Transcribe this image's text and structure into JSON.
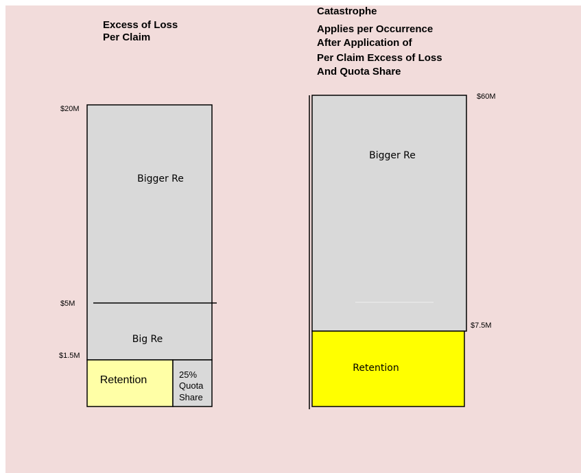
{
  "left": {
    "title": [
      "Excess of Loss",
      "Per Claim"
    ],
    "levels": [
      "$20M",
      "$5M",
      "$1.5M"
    ],
    "layers": {
      "top": "Bigger Re",
      "middle": "Big Re",
      "retention": "Retention",
      "quota_share": [
        "25%",
        "Quota",
        "Share"
      ]
    }
  },
  "right": {
    "title": [
      "Catastrophe",
      "Applies per Occurrence",
      "After Application of",
      "Per Claim Excess of Loss",
      "And Quota Share"
    ],
    "levels": [
      "$60M",
      "$7.5M"
    ],
    "layers": {
      "top": "Bigger Re",
      "retention": "Retention"
    }
  }
}
